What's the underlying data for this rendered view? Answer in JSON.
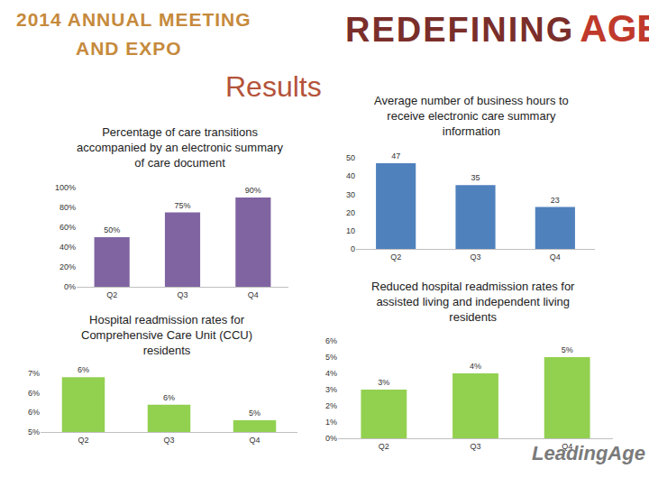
{
  "slide": {
    "event": [
      "2014 ANNUAL MEETING",
      "AND EXPO"
    ],
    "theme": [
      "REDEFINING",
      "AGE"
    ],
    "heading": "Results",
    "logo": "LeadingAge"
  },
  "chart_data": [
    {
      "type": "bar",
      "title": "Percentage of care transitions accompanied by an electronic summary of care document",
      "categories": [
        "Q2",
        "Q3",
        "Q4"
      ],
      "values": [
        50,
        75,
        90
      ],
      "value_labels": [
        "50%",
        "75%",
        "90%"
      ],
      "data_labels": true,
      "color": "#8064a2",
      "ylim": [
        0,
        100
      ],
      "yticks": [
        {
          "value": 0,
          "label": "0%"
        },
        {
          "value": 20,
          "label": "20%"
        },
        {
          "value": 40,
          "label": "40%"
        },
        {
          "value": 60,
          "label": "60%"
        },
        {
          "value": 80,
          "label": "80%"
        },
        {
          "value": 100,
          "label": "100%"
        }
      ],
      "grid": false
    },
    {
      "type": "bar",
      "title": "Average number of business hours to receive electronic care summary information",
      "categories": [
        "Q2",
        "Q3",
        "Q4"
      ],
      "values": [
        47,
        35,
        23
      ],
      "data_labels": true,
      "color": "#4f81bd",
      "ylim": [
        0,
        50
      ],
      "yticks": [
        0,
        10,
        20,
        30,
        40,
        50
      ],
      "grid": false
    },
    {
      "type": "bar",
      "title": "Hospital readmission rates for Comprehensive Care Unit (CCU) residents",
      "categories": [
        "Q2",
        "Q3",
        "Q4"
      ],
      "values": [
        6.4,
        5.7,
        5.3
      ],
      "value_labels": [
        "6%",
        "6%",
        "5%"
      ],
      "data_labels": true,
      "color": "#92d050",
      "ylim": [
        5,
        6.5
      ],
      "yticks": [
        {
          "value": 5,
          "label": "5%"
        },
        {
          "value": 5.5,
          "label": "6%"
        },
        {
          "value": 6,
          "label": "6%"
        },
        {
          "value": 6.5,
          "label": "7%"
        }
      ],
      "grid": false
    },
    {
      "type": "bar",
      "title": "Reduced hospital readmission rates for assisted living and independent living residents",
      "categories": [
        "Q2",
        "Q3",
        "Q4"
      ],
      "values": [
        3,
        4,
        5
      ],
      "value_labels": [
        "3%",
        "4%",
        "5%"
      ],
      "data_labels": true,
      "color": "#92d050",
      "ylim": [
        0,
        6
      ],
      "yticks": [
        {
          "value": 0,
          "label": "0%"
        },
        {
          "value": 1,
          "label": "1%"
        },
        {
          "value": 2,
          "label": "2%"
        },
        {
          "value": 3,
          "label": "3%"
        },
        {
          "value": 4,
          "label": "4%"
        },
        {
          "value": 5,
          "label": "5%"
        },
        {
          "value": 6,
          "label": "6%"
        }
      ],
      "grid": false
    }
  ]
}
